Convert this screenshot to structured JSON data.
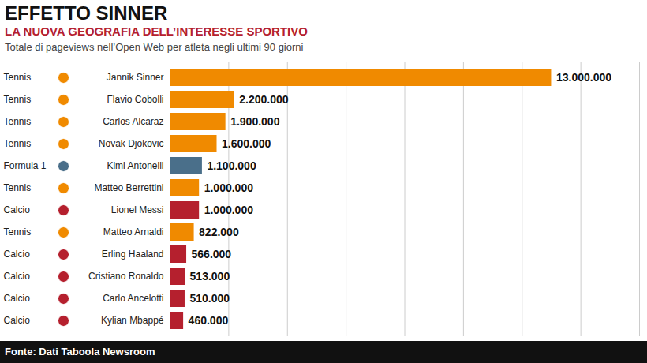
{
  "chart_data": {
    "type": "bar",
    "orientation": "horizontal",
    "title": "EFFETTO SINNER",
    "subtitle": "LA NUOVA GEOGRAFIA DELL’INTERESSE SPORTIVO",
    "caption": "Totale di pageviews nell’Open Web per atleta negli ultimi 90 giorni",
    "source": "Fonte: Dati Taboola Newsroom",
    "categories": [
      "Jannik Sinner",
      "Flavio Cobolli",
      "Carlos Alcaraz",
      "Novak Djokovic",
      "Kimi Antonelli",
      "Matteo Berrettini",
      "Lionel Messi",
      "Matteo Arnaldi",
      "Erling Haaland",
      "Cristiano Ronaldo",
      "Carlo Ancelotti",
      "Kylian Mbappé"
    ],
    "sports": [
      "Tennis",
      "Tennis",
      "Tennis",
      "Tennis",
      "Formula 1",
      "Tennis",
      "Calcio",
      "Tennis",
      "Calcio",
      "Calcio",
      "Calcio",
      "Calcio"
    ],
    "values": [
      13000000,
      2200000,
      1900000,
      1600000,
      1100000,
      1000000,
      1000000,
      822000,
      566000,
      513000,
      510000,
      460000
    ],
    "value_labels": [
      "13.000.000",
      "2.200.000",
      "1.900.000",
      "1.600.000",
      "1.100.000",
      "1.000.000",
      "1.000.000",
      "822.000",
      "566.000",
      "513.000",
      "510.000",
      "460.000"
    ],
    "colors": [
      "#f08a00",
      "#f08a00",
      "#f08a00",
      "#f08a00",
      "#4a6f8a",
      "#f08a00",
      "#b5202e",
      "#f08a00",
      "#b5202e",
      "#b5202e",
      "#b5202e",
      "#b5202e"
    ],
    "xlim": [
      0,
      16000000
    ],
    "xticks": [
      0,
      2000000,
      4000000,
      6000000,
      8000000,
      10000000,
      12000000,
      14000000,
      16000000
    ],
    "grid": true,
    "tick_labels": false,
    "data_labels": true
  }
}
